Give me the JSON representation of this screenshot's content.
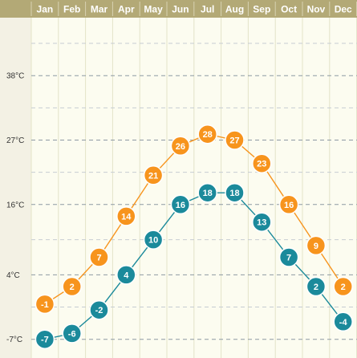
{
  "chart_data": {
    "type": "line",
    "title": "",
    "xlabel": "",
    "ylabel": "",
    "categories": [
      "Jan",
      "Feb",
      "Mar",
      "Apr",
      "May",
      "Jun",
      "Jul",
      "Aug",
      "Sep",
      "Oct",
      "Nov",
      "Dec"
    ],
    "y_ticks": [
      {
        "value": 38,
        "label": "38°C"
      },
      {
        "value": 27,
        "label": "27°C"
      },
      {
        "value": 16,
        "label": "16°C"
      },
      {
        "value": 4,
        "label": "4°C"
      },
      {
        "value": -7,
        "label": "-7°C"
      }
    ],
    "ylim": [
      -9,
      48
    ],
    "grid": true,
    "series": [
      {
        "values": [
          -1,
          2,
          7,
          14,
          21,
          26,
          28,
          27,
          23,
          16,
          9,
          2
        ],
        "color": "#f7941d",
        "line_color": "#f7941d"
      },
      {
        "values": [
          -7,
          -6,
          -2,
          4,
          10,
          16,
          18,
          18,
          13,
          7,
          2,
          -4
        ],
        "color": "#1b8a9b",
        "line_color": "#1b8a9b"
      }
    ]
  },
  "colors": {
    "header_bg": "#b3a976",
    "header_divider": "#d8d2b2",
    "left_panel_bg": "#f3f1e4",
    "plot_bg": "#fcfcf0",
    "column_divider": "#e3e3c8",
    "grid_major": "#8d99a3",
    "grid_minor": "#c6cdd2"
  }
}
